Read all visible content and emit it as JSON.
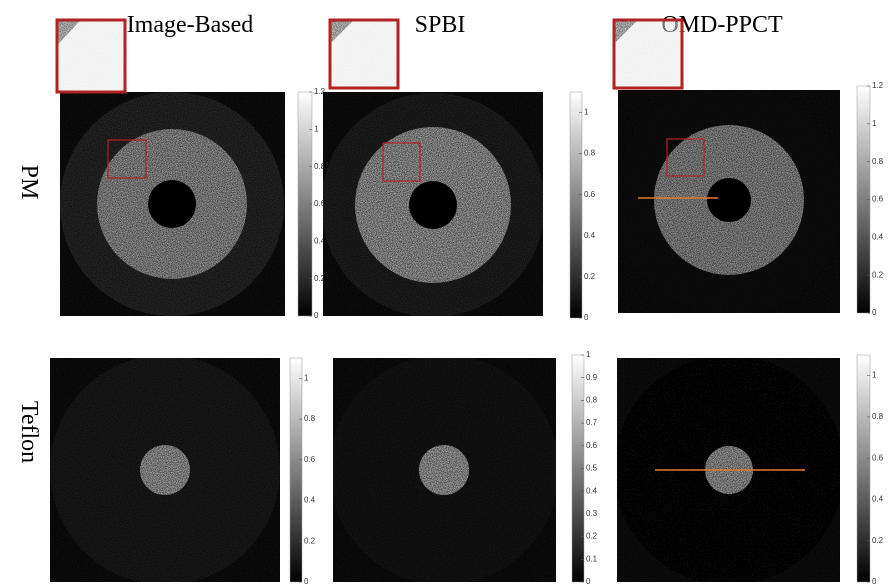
{
  "columns": [
    "Image-Based",
    "SPBI",
    "OMD-PPCT"
  ],
  "rows": [
    {
      "label": "PM",
      "panels": [
        {
          "colorbar": {
            "lim": [
              0,
              1.2
            ],
            "ticks": [
              0,
              0.2,
              0.4,
              0.6,
              0.8,
              1,
              1.2
            ]
          }
        },
        {
          "colorbar": {
            "lim": [
              0,
              1.1
            ],
            "ticks": [
              0,
              0.2,
              0.4,
              0.6,
              0.8,
              1
            ]
          }
        },
        {
          "colorbar": {
            "lim": [
              0,
              1.2
            ],
            "ticks": [
              0,
              0.2,
              0.4,
              0.6,
              0.8,
              1,
              1.2
            ]
          }
        }
      ]
    },
    {
      "label": "Teflon",
      "panels": [
        {
          "colorbar": {
            "lim": [
              0,
              1.1
            ],
            "ticks": [
              0,
              0.2,
              0.4,
              0.6,
              0.8,
              1
            ]
          }
        },
        {
          "colorbar": {
            "lim": [
              0,
              1
            ],
            "ticks": [
              0,
              0.1,
              0.2,
              0.3,
              0.4,
              0.5,
              0.6,
              0.7,
              0.8,
              0.9,
              1
            ]
          }
        },
        {
          "colorbar": {
            "lim": [
              0,
              1.1
            ],
            "ticks": [
              0,
              0.2,
              0.4,
              0.6,
              0.8,
              1
            ]
          }
        }
      ]
    }
  ]
}
